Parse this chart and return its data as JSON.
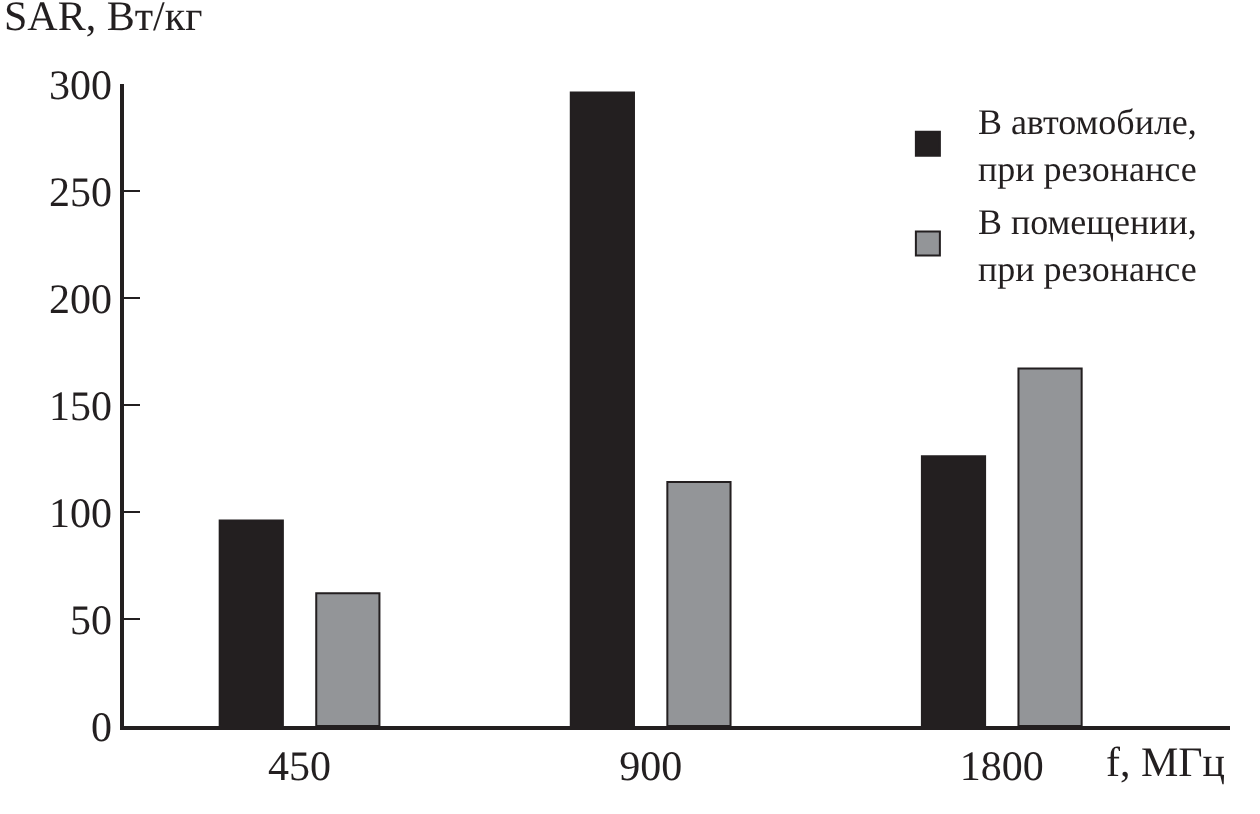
{
  "chart_data": {
    "type": "bar",
    "ylabel": "SAR, Вт/кг",
    "xlabel": "f, МГц",
    "categories": [
      "450",
      "900",
      "1800"
    ],
    "series": [
      {
        "name": "В автомобиле,\nпри резонансе",
        "color": "#231f20",
        "values": [
          96,
          296,
          126
        ]
      },
      {
        "name": "В помещении,\nпри резонансе",
        "color": "#939598",
        "values": [
          62,
          114,
          167
        ]
      }
    ],
    "ylim": [
      0,
      300
    ],
    "yticks": [
      0,
      50,
      100,
      150,
      200,
      250,
      300
    ],
    "legend": "top right"
  }
}
